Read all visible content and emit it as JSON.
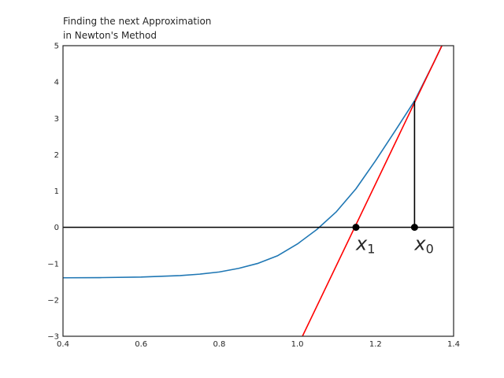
{
  "chart_data": {
    "type": "line",
    "title_lines": [
      "Finding the next Approximation",
      "in Newton's Method"
    ],
    "xlabel": "",
    "ylabel": "",
    "xlim": [
      0.4,
      1.4
    ],
    "ylim": [
      -3,
      5
    ],
    "x_ticks": [
      0.4,
      0.6,
      0.8,
      1.0,
      1.2,
      1.4
    ],
    "x_tick_labels": [
      "0.4",
      "0.6",
      "0.8",
      "1.0",
      "1.2",
      "1.4"
    ],
    "y_ticks": [
      -3,
      -2,
      -1,
      0,
      1,
      2,
      3,
      4,
      5
    ],
    "y_tick_labels": [
      "−3",
      "−2",
      "−1",
      "0",
      "1",
      "2",
      "3",
      "4",
      "5"
    ],
    "grid": false,
    "series": [
      {
        "kind": "curve",
        "color": "#1f77b4",
        "x": [
          0.4,
          0.5,
          0.6,
          0.7,
          0.75,
          0.8,
          0.85,
          0.9,
          0.95,
          1.0,
          1.05,
          1.1,
          1.15,
          1.2,
          1.25,
          1.3,
          1.35,
          1.37
        ],
        "y": [
          -1.39,
          -1.385,
          -1.37,
          -1.33,
          -1.29,
          -1.23,
          -1.13,
          -0.99,
          -0.78,
          -0.46,
          -0.06,
          0.43,
          1.06,
          1.83,
          2.65,
          3.48,
          4.55,
          5.0
        ]
      },
      {
        "kind": "tangent-line",
        "color": "#ff0000",
        "x": [
          1.013,
          1.37
        ],
        "y": [
          -3.0,
          5.0
        ]
      },
      {
        "kind": "x-axis-line",
        "color": "#000000",
        "x": [
          0.4,
          1.4
        ],
        "y": [
          0,
          0
        ]
      },
      {
        "kind": "vertical-segment",
        "color": "#000000",
        "x": [
          1.3,
          1.3
        ],
        "y": [
          0,
          3.48
        ]
      }
    ],
    "points": [
      {
        "x": 1.15,
        "y": 0,
        "label": "x",
        "sub": "1"
      },
      {
        "x": 1.3,
        "y": 0,
        "label": "x",
        "sub": "0"
      }
    ]
  }
}
